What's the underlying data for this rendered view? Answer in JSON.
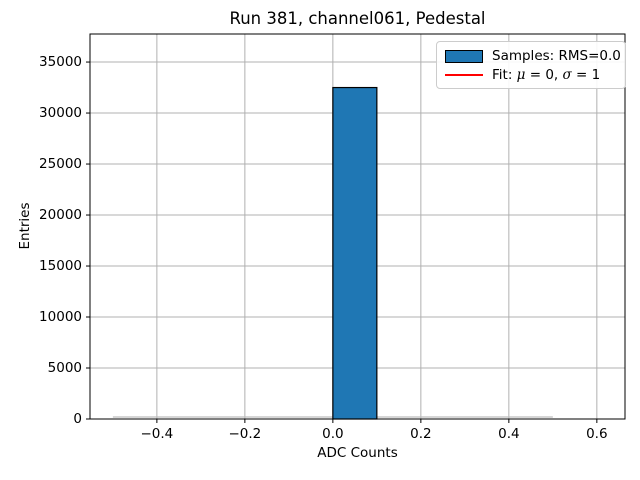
{
  "chart_data": {
    "type": "bar",
    "variant": "histogram",
    "title": "Run 381, channel061, Pedestal",
    "xlabel": "ADC Counts",
    "ylabel": "Entries",
    "bin_edges": [
      -0.5,
      -0.4,
      -0.3,
      -0.2,
      -0.1,
      0.0,
      0.1,
      0.2,
      0.3,
      0.4,
      0.5
    ],
    "counts": [
      0,
      0,
      0,
      0,
      0,
      32500,
      0,
      0,
      0,
      0
    ],
    "xlim": [
      -0.552,
      0.664
    ],
    "ylim": [
      0,
      37750
    ],
    "xticks": [
      -0.4,
      -0.2,
      0.0,
      0.2,
      0.4,
      0.6
    ],
    "xtick_labels": [
      "−0.4",
      "−0.2",
      "0.0",
      "0.2",
      "0.4",
      "0.6"
    ],
    "yticks": [
      0,
      5000,
      10000,
      15000,
      20000,
      25000,
      30000,
      35000
    ],
    "ytick_labels": [
      "0",
      "5000",
      "10000",
      "15000",
      "20000",
      "25000",
      "30000",
      "35000"
    ],
    "grid": true,
    "legend_position": "upper right",
    "fit": {
      "mu": 0,
      "sigma": 1
    },
    "colors": {
      "bar_fill": "#1f77b4",
      "bar_edge": "#000000",
      "fit_line": "#ff0000",
      "grid": "#b0b0b0",
      "spine": "#000000",
      "zero_bin_outline": "#bdbdbd"
    },
    "legend": {
      "samples_label": "Samples: RMS=0.0",
      "fit_prefix": "Fit: ",
      "fit_mu_symbol": "μ",
      "fit_mu_rest": " = 0, ",
      "fit_sigma_symbol": "σ",
      "fit_sigma_rest": " = 1"
    }
  }
}
